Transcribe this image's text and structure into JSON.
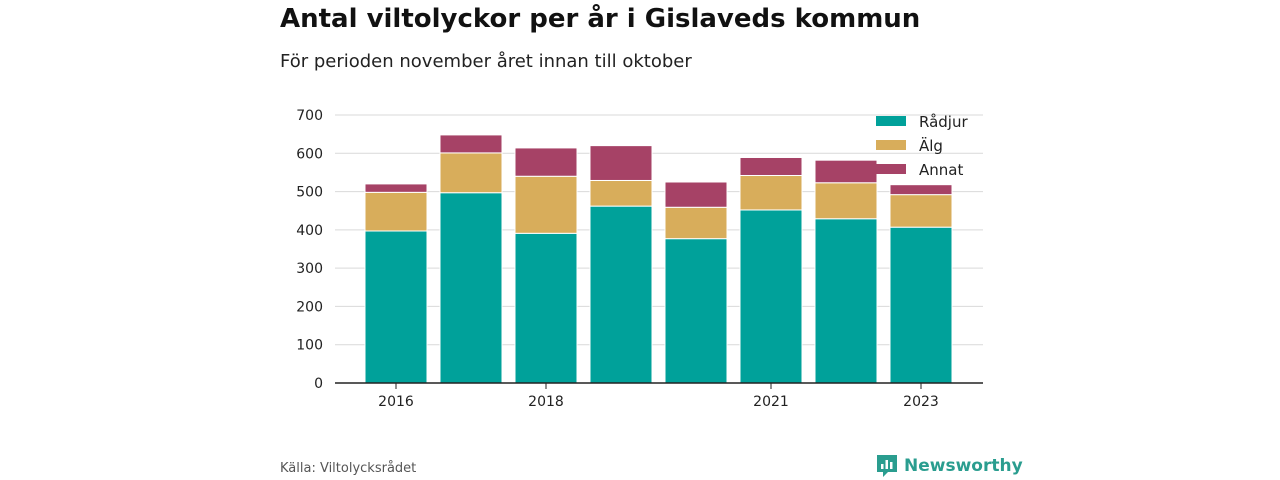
{
  "header": {
    "title": "Antal viltolyckor per år i Gislaveds kommun",
    "subtitle": "För perioden november året innan till oktober"
  },
  "footer": {
    "source": "Källa: Viltolycksrådet",
    "brand": "Newsworthy",
    "brand_icon": "newsworthy-logo-icon"
  },
  "colors": {
    "Rådjur": "#00a19a",
    "Älg": "#d8ad5b",
    "Annat": "#a64266",
    "grid": "#d9d9d9",
    "axis": "#222222"
  },
  "chart_data": {
    "type": "bar",
    "stacked": true,
    "x": [
      2016,
      2017,
      2018,
      2019,
      2020,
      2021,
      2022,
      2023
    ],
    "x_tick_labels": [
      "2016",
      "2018",
      "2021",
      "2023"
    ],
    "x_tick_values": [
      2016,
      2018,
      2021,
      2023
    ],
    "series": [
      {
        "name": "Rådjur",
        "values": [
          397,
          497,
          391,
          462,
          377,
          452,
          429,
          407
        ]
      },
      {
        "name": "Älg",
        "values": [
          101,
          104,
          149,
          67,
          82,
          90,
          94,
          85
        ]
      },
      {
        "name": "Annat",
        "values": [
          22,
          47,
          74,
          91,
          66,
          47,
          59,
          26
        ]
      }
    ],
    "ylim": [
      0,
      700
    ],
    "y_ticks": [
      0,
      100,
      200,
      300,
      400,
      500,
      600,
      700
    ],
    "grid": true,
    "legend_position": "top-right"
  }
}
